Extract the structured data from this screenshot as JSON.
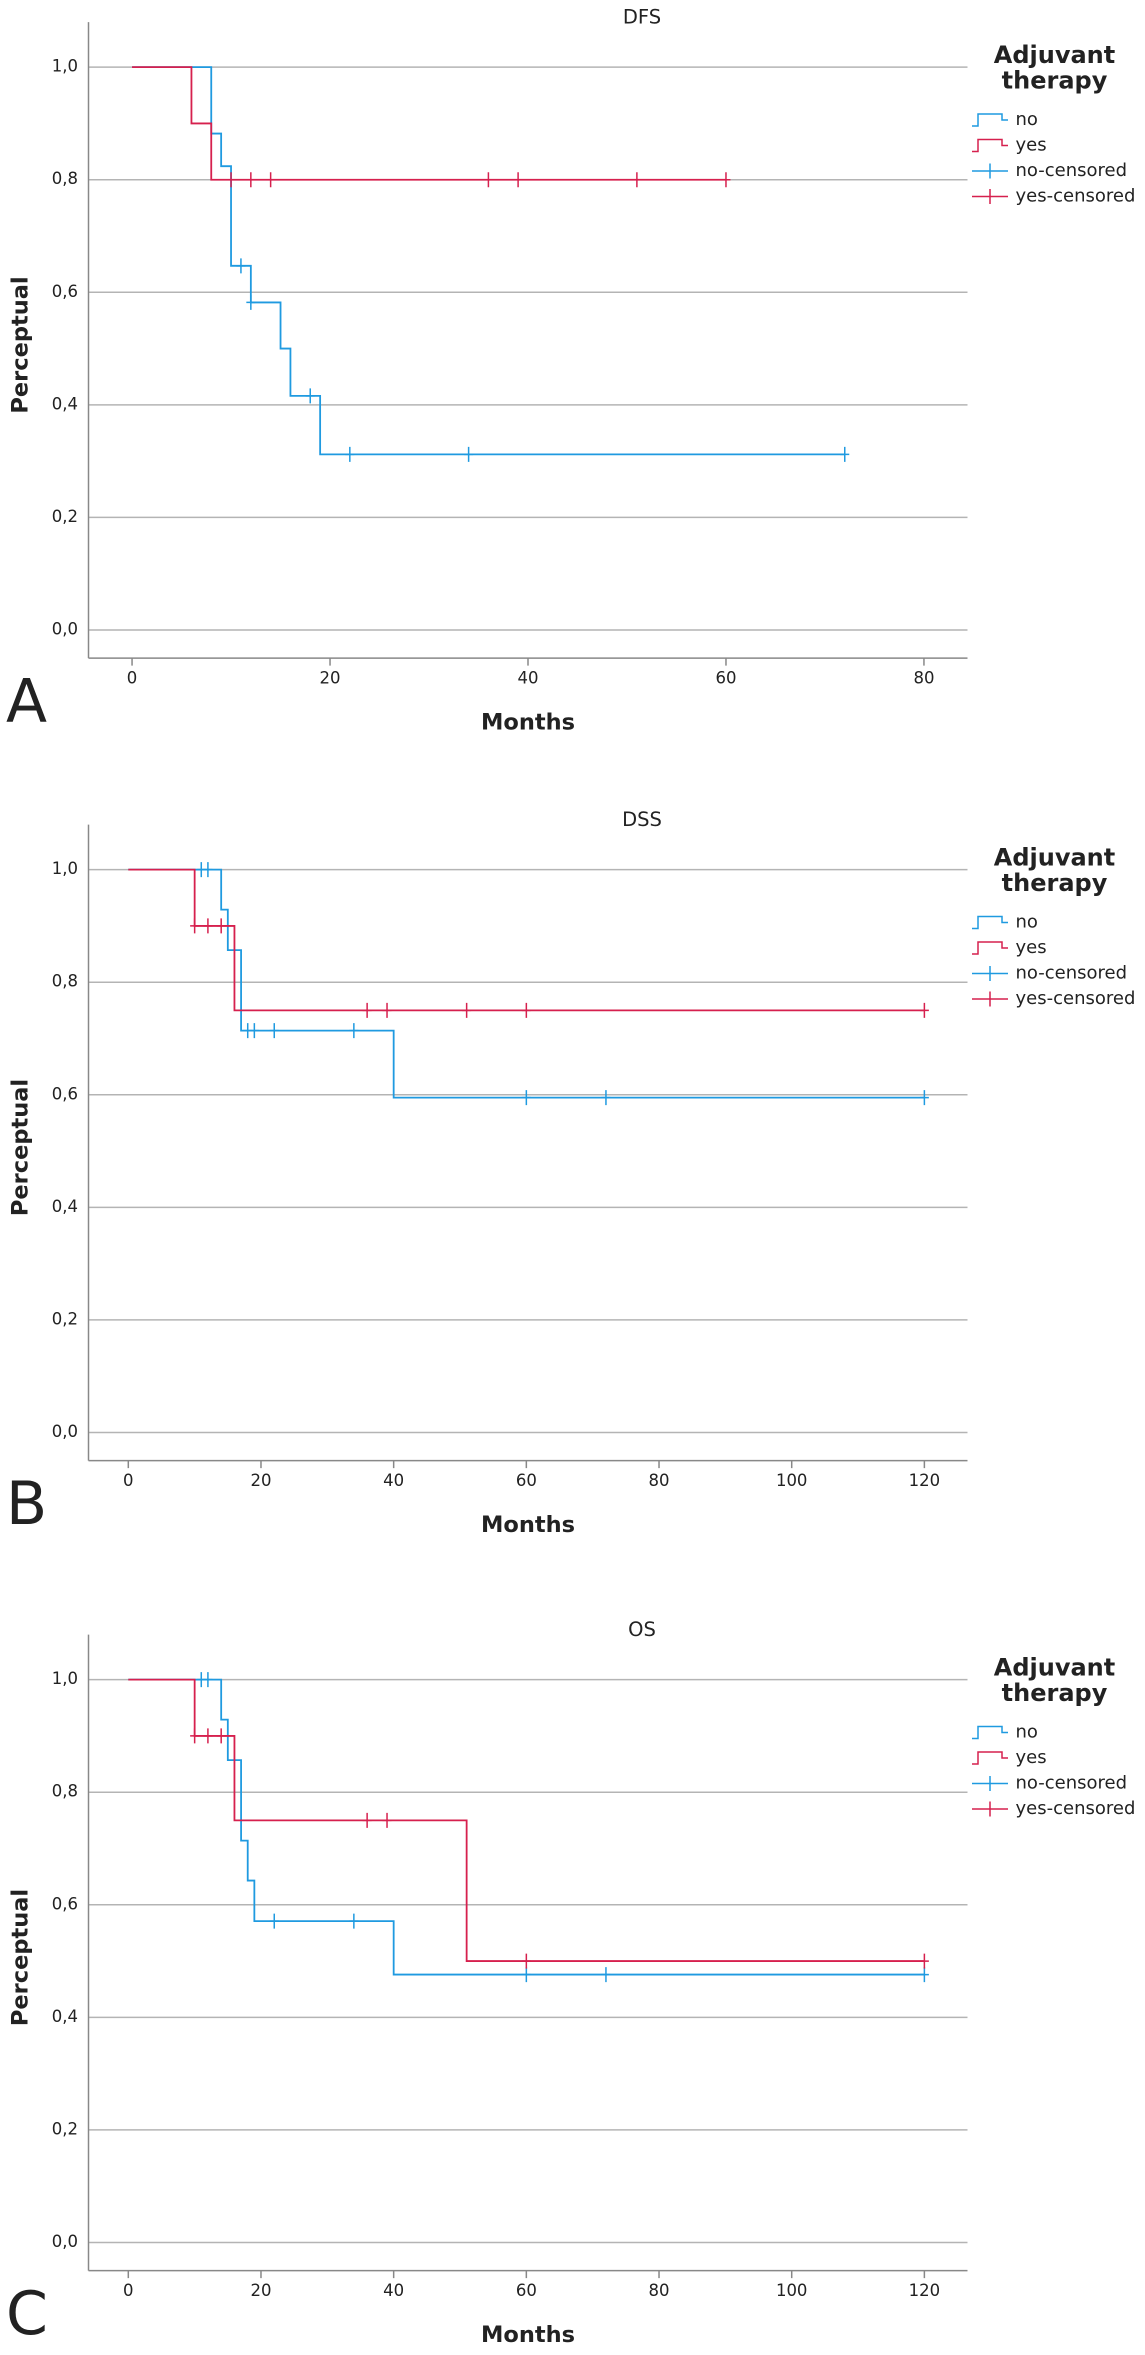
{
  "chart_data": [
    {
      "type": "step",
      "title": "DFS",
      "panel_label": "A",
      "x_label": "Months",
      "y_label": "Perceptual",
      "legend_title": "Adjuvant therapy",
      "xlim": [
        -4.4,
        84.4
      ],
      "xticks": [
        0,
        20,
        40,
        60,
        80
      ],
      "ylim": [
        -0.05,
        1.08
      ],
      "yticks": [
        {
          "value": 0,
          "label": "0,0"
        },
        {
          "value": 0.2,
          "label": "0,2"
        },
        {
          "value": 0.4,
          "label": "0,4"
        },
        {
          "value": 0.6,
          "label": "0,6"
        },
        {
          "value": 0.8,
          "label": "0,8"
        },
        {
          "value": 1,
          "label": "1,0"
        }
      ],
      "grid": true,
      "series": [
        {
          "name": "no",
          "color": "#1f9ae0",
          "x": [
            0,
            8,
            9,
            10,
            12,
            15,
            16,
            19,
            72
          ],
          "values": [
            1,
            0.882,
            0.824,
            0.647,
            0.582,
            0.5,
            0.416,
            0.312,
            0.312
          ]
        },
        {
          "name": "yes",
          "color": "#d6204e",
          "x": [
            0,
            6,
            8,
            60
          ],
          "values": [
            1,
            0.9,
            0.8,
            0.8
          ]
        },
        {
          "name": "no-censored",
          "color": "#1f9ae0",
          "marker": "+",
          "x": [
            11,
            12,
            18,
            22,
            34,
            72
          ],
          "values": [
            0.647,
            0.582,
            0.416,
            0.312,
            0.312,
            0.312
          ]
        },
        {
          "name": "yes-censored",
          "color": "#d6204e",
          "marker": "+",
          "x": [
            10,
            12,
            14,
            36,
            39,
            51,
            60
          ],
          "values": [
            0.8,
            0.8,
            0.8,
            0.8,
            0.8,
            0.8,
            0.8
          ]
        }
      ]
    },
    {
      "type": "step",
      "title": "DSS",
      "panel_label": "B",
      "x_label": "Months",
      "y_label": "Perceptual",
      "legend_title": "Adjuvant therapy",
      "xlim": [
        -6,
        126.5
      ],
      "xticks": [
        0,
        20,
        40,
        60,
        80,
        100,
        120
      ],
      "ylim": [
        -0.05,
        1.08
      ],
      "yticks": [
        {
          "value": 0,
          "label": "0,0"
        },
        {
          "value": 0.2,
          "label": "0,2"
        },
        {
          "value": 0.4,
          "label": "0,4"
        },
        {
          "value": 0.6,
          "label": "0,6"
        },
        {
          "value": 0.8,
          "label": "0,8"
        },
        {
          "value": 1,
          "label": "1,0"
        }
      ],
      "grid": true,
      "series": [
        {
          "name": "no",
          "color": "#1f9ae0",
          "x": [
            0,
            14,
            15,
            17,
            40,
            120
          ],
          "values": [
            1,
            0.929,
            0.857,
            0.714,
            0.595,
            0.595
          ]
        },
        {
          "name": "yes",
          "color": "#d6204e",
          "x": [
            0,
            10,
            16,
            120
          ],
          "values": [
            1,
            0.9,
            0.75,
            0.75
          ]
        },
        {
          "name": "no-censored",
          "color": "#1f9ae0",
          "marker": "+",
          "x": [
            11,
            12,
            18,
            19,
            22,
            34,
            60,
            72,
            120
          ],
          "values": [
            1,
            1,
            0.714,
            0.714,
            0.714,
            0.714,
            0.595,
            0.595,
            0.595
          ]
        },
        {
          "name": "yes-censored",
          "color": "#d6204e",
          "marker": "+",
          "x": [
            10,
            12,
            14,
            36,
            39,
            51,
            60,
            120
          ],
          "values": [
            0.9,
            0.9,
            0.9,
            0.75,
            0.75,
            0.75,
            0.75,
            0.75
          ]
        }
      ]
    },
    {
      "type": "step",
      "title": "OS",
      "panel_label": "C",
      "x_label": "Months",
      "y_label": "Perceptual",
      "legend_title": "Adjuvant therapy",
      "xlim": [
        -6,
        126.5
      ],
      "xticks": [
        0,
        20,
        40,
        60,
        80,
        100,
        120
      ],
      "ylim": [
        -0.05,
        1.08
      ],
      "yticks": [
        {
          "value": 0,
          "label": "0,0"
        },
        {
          "value": 0.2,
          "label": "0,2"
        },
        {
          "value": 0.4,
          "label": "0,4"
        },
        {
          "value": 0.6,
          "label": "0,6"
        },
        {
          "value": 0.8,
          "label": "0,8"
        },
        {
          "value": 1,
          "label": "1,0"
        }
      ],
      "grid": true,
      "series": [
        {
          "name": "no",
          "color": "#1f9ae0",
          "x": [
            0,
            14,
            15,
            17,
            18,
            19,
            40,
            120
          ],
          "values": [
            1,
            0.929,
            0.857,
            0.714,
            0.643,
            0.571,
            0.476,
            0.476
          ]
        },
        {
          "name": "yes",
          "color": "#d6204e",
          "x": [
            0,
            10,
            16,
            51,
            120
          ],
          "values": [
            1,
            0.9,
            0.75,
            0.5,
            0.5
          ]
        },
        {
          "name": "no-censored",
          "color": "#1f9ae0",
          "marker": "+",
          "x": [
            11,
            12,
            22,
            34,
            60,
            72,
            120
          ],
          "values": [
            1,
            1,
            0.571,
            0.571,
            0.476,
            0.476,
            0.476
          ]
        },
        {
          "name": "yes-censored",
          "color": "#d6204e",
          "marker": "+",
          "x": [
            10,
            12,
            14,
            36,
            39,
            60,
            120
          ],
          "values": [
            0.9,
            0.9,
            0.9,
            0.75,
            0.75,
            0.5,
            0.5
          ]
        }
      ]
    }
  ]
}
